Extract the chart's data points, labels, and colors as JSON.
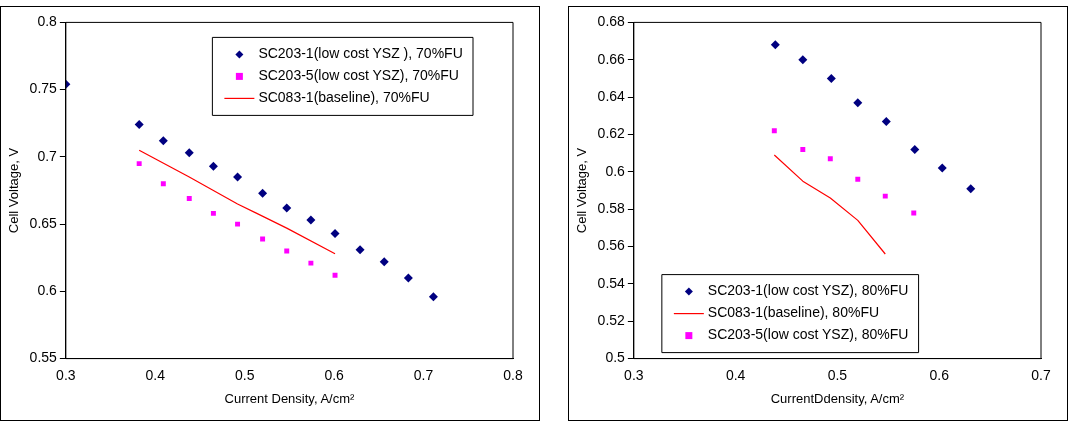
{
  "chart_data": [
    {
      "type": "scatter",
      "xlabel": "Current Density, A/cm²",
      "ylabel": "Cell Voltage, V",
      "xlim": [
        0.3,
        0.8
      ],
      "xticks": [
        0.3,
        0.4,
        0.5,
        0.6,
        0.7,
        0.8
      ],
      "ylim": [
        0.55,
        0.8
      ],
      "yticks": [
        0.55,
        0.6,
        0.65,
        0.7,
        0.75,
        0.8
      ],
      "grid": false,
      "legend": "top right",
      "series": [
        {
          "name": "SC203-1(low cost YSZ ), 70%FU",
          "type": "scatter",
          "marker": "diamond",
          "color": "#000080",
          "x": [
            0.3,
            0.382,
            0.409,
            0.438,
            0.465,
            0.492,
            0.52,
            0.547,
            0.574,
            0.601,
            0.629,
            0.656,
            0.683,
            0.711
          ],
          "values": [
            0.754,
            0.724,
            0.712,
            0.703,
            0.693,
            0.685,
            0.673,
            0.662,
            0.653,
            0.643,
            0.631,
            0.622,
            0.61,
            0.596
          ]
        },
        {
          "name": "SC203-5(low cost YSZ), 70%FU",
          "type": "scatter",
          "marker": "square",
          "color": "#ff00ff",
          "x": [
            0.382,
            0.409,
            0.438,
            0.465,
            0.492,
            0.52,
            0.547,
            0.574,
            0.601
          ],
          "values": [
            0.695,
            0.68,
            0.669,
            0.658,
            0.65,
            0.639,
            0.63,
            0.621,
            0.612
          ]
        },
        {
          "name": "SC083-1(baseline), 70%FU",
          "type": "line",
          "marker": "none",
          "line_style": "solid",
          "color": "#ff0000",
          "x": [
            0.382,
            0.438,
            0.492,
            0.547,
            0.601
          ],
          "values": [
            0.705,
            0.685,
            0.665,
            0.647,
            0.628
          ]
        }
      ]
    },
    {
      "type": "scatter",
      "xlabel": "CurrentDdensity, A/cm²",
      "ylabel": "Cell Voltage, V",
      "xlim": [
        0.3,
        0.7
      ],
      "xticks": [
        0.3,
        0.4,
        0.5,
        0.6,
        0.7
      ],
      "ylim": [
        0.5,
        0.68
      ],
      "yticks": [
        0.5,
        0.52,
        0.54,
        0.56,
        0.58,
        0.6,
        0.62,
        0.64,
        0.66,
        0.68
      ],
      "grid": false,
      "legend": "bottom left",
      "series": [
        {
          "name": "SC203-1(low cost YSZ), 80%FU",
          "type": "scatter",
          "marker": "diamond",
          "color": "#000080",
          "x": [
            0.439,
            0.466,
            0.494,
            0.52,
            0.548,
            0.576,
            0.603,
            0.631
          ],
          "values": [
            0.668,
            0.66,
            0.65,
            0.637,
            0.627,
            0.612,
            0.602,
            0.591
          ]
        },
        {
          "name": "SC083-1(baseline), 80%FU",
          "type": "line",
          "marker": "none",
          "line_style": "solid",
          "color": "#ff0000",
          "x": [
            0.438,
            0.466,
            0.493,
            0.52,
            0.547
          ],
          "values": [
            0.609,
            0.595,
            0.586,
            0.574,
            0.556
          ]
        },
        {
          "name": "SC203-5(low cost YSZ), 80%FU",
          "type": "scatter",
          "marker": "square",
          "color": "#ff00ff",
          "x": [
            0.438,
            0.466,
            0.493,
            0.52,
            0.547,
            0.575
          ],
          "values": [
            0.622,
            0.612,
            0.607,
            0.596,
            0.587,
            0.578
          ]
        }
      ]
    }
  ]
}
